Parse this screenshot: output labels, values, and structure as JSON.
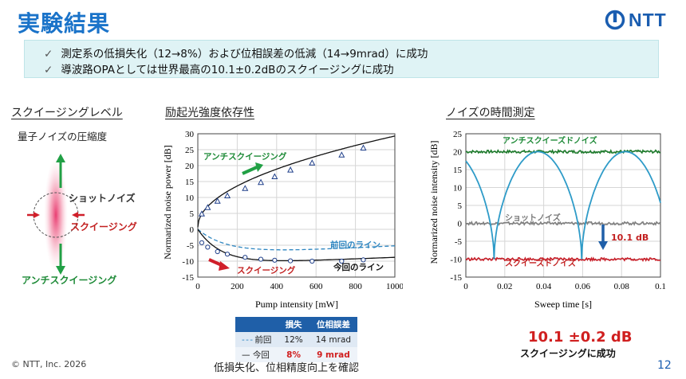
{
  "header": {
    "title": "実験結果",
    "logo_text": "NTT"
  },
  "summary": {
    "bullet1": "測定系の低損失化（12→8%）および位相誤差の低減（14→9mrad）に成功",
    "bullet2": "導波路OPAとしては世界最高の10.1±0.2dBのスクイージングに成功",
    "check": "✓"
  },
  "section1": {
    "heading": "スクイージングレベル",
    "subtitle": "量子ノイズの圧縮度",
    "shot_label": "ショットノイズ",
    "squeeze_label": "スクイージング",
    "anti_label": "アンチスクイージング"
  },
  "section2": {
    "heading": "励起光強度依存性"
  },
  "section3": {
    "heading": "ノイズの時間測定"
  },
  "param_table": {
    "headers": [
      "",
      "損失",
      "位相誤差"
    ],
    "rows": [
      {
        "legend": "前回",
        "loss": "12%",
        "phase": "14 mrad"
      },
      {
        "legend": "今回",
        "loss": "8%",
        "phase": "9 mrad"
      }
    ]
  },
  "result": {
    "value": "10.1 ±0.2 dB",
    "text": "スクイージングに成功"
  },
  "footer": {
    "copyright": "© NTT, Inc. 2026",
    "caption": "低損失化、位相精度向上を確認",
    "page": "12"
  },
  "chart_data": [
    {
      "type": "line",
      "title": "励起光強度依存性",
      "xlabel": "Pump intensity [mW]",
      "ylabel": "Normarized noise power [dB]",
      "xlim": [
        0,
        1000
      ],
      "ylim": [
        -15,
        30
      ],
      "xticks": [
        "0",
        "200",
        "400",
        "600",
        "800",
        "1000"
      ],
      "yticks": [
        "-15",
        "-10",
        "-5",
        "0",
        "5",
        "10",
        "15",
        "20",
        "25",
        "30"
      ],
      "grid": true,
      "series": [
        {
          "name": "アンチスクイージング (measured)",
          "x": [
            20,
            50,
            100,
            150,
            240,
            320,
            390,
            470,
            580,
            730,
            840
          ],
          "y": [
            4.8,
            6.8,
            8.8,
            10.5,
            12.8,
            14.7,
            16.5,
            18.6,
            20.8,
            23.3,
            25.5
          ]
        },
        {
          "name": "スクイージング (measured)",
          "x": [
            20,
            50,
            100,
            150,
            240,
            320,
            390,
            470,
            580,
            730,
            840
          ],
          "y": [
            -4.2,
            -5.6,
            -7.0,
            -7.8,
            -8.8,
            -9.4,
            -9.7,
            -9.9,
            -10.0,
            -10.0,
            -9.6
          ]
        }
      ],
      "curves": {
        "anti_label": "アンチスクイージング",
        "squeeze_label": "スクイージング",
        "prev_label": "前回のライン",
        "curr_label": "今回のライン"
      }
    },
    {
      "type": "line",
      "title": "ノイズの時間測定",
      "xlabel": "Sweep time [s]",
      "ylabel": "Normarized noise intensity [dB]",
      "xlim": [
        0,
        0.1
      ],
      "ylim": [
        -15,
        25
      ],
      "xticks": [
        "0",
        "0.02",
        "0.04",
        "0.06",
        "0.08",
        "0.1"
      ],
      "yticks": [
        "-15",
        "-10",
        "-5",
        "0",
        "5",
        "10",
        "15",
        "20",
        "25"
      ],
      "grid": true,
      "series": [
        {
          "name": "アンチスクイーズドノイズ",
          "level": 20,
          "color": "#1e7b2c"
        },
        {
          "name": "ショットノイズ",
          "level": 0,
          "color": "#808080"
        },
        {
          "name": "スクイーズドノイズ",
          "level": -10,
          "color": "#c8202a"
        },
        {
          "name": "sweep",
          "minima_x": [
            0.0145,
            0.0595
          ],
          "maxima_x": [
            0.036,
            0.081
          ],
          "min_y": -10,
          "max_y": 20,
          "color": "#2e9bc8"
        }
      ],
      "annotation": "10.1 dB"
    }
  ]
}
